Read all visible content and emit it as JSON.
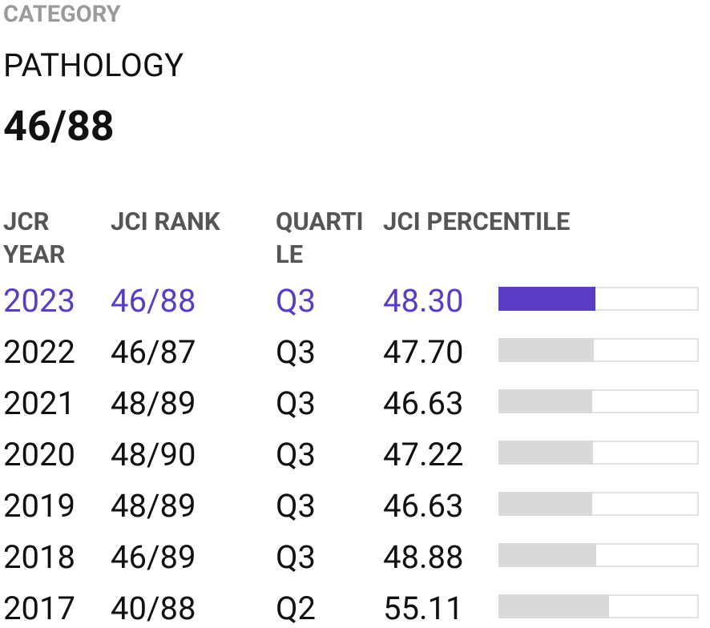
{
  "header": {
    "label": "CATEGORY",
    "category": "PATHOLOGY",
    "rank": "46/88"
  },
  "table": {
    "columns": [
      "JCR YEAR",
      "JCI RANK",
      "QUARTILE",
      "JCI PERCENTILE"
    ],
    "rows": [
      {
        "year": "2023",
        "rank": "46/88",
        "quartile": "Q3",
        "percentile": 48.3,
        "percentile_label": "48.30"
      },
      {
        "year": "2022",
        "rank": "46/87",
        "quartile": "Q3",
        "percentile": 47.7,
        "percentile_label": "47.70"
      },
      {
        "year": "2021",
        "rank": "48/89",
        "quartile": "Q3",
        "percentile": 46.63,
        "percentile_label": "46.63"
      },
      {
        "year": "2020",
        "rank": "48/90",
        "quartile": "Q3",
        "percentile": 47.22,
        "percentile_label": "47.22"
      },
      {
        "year": "2019",
        "rank": "48/89",
        "quartile": "Q3",
        "percentile": 46.63,
        "percentile_label": "46.63"
      },
      {
        "year": "2018",
        "rank": "46/89",
        "quartile": "Q3",
        "percentile": 48.88,
        "percentile_label": "48.88"
      },
      {
        "year": "2017",
        "rank": "40/88",
        "quartile": "Q2",
        "percentile": 55.11,
        "percentile_label": "55.11"
      }
    ]
  }
}
